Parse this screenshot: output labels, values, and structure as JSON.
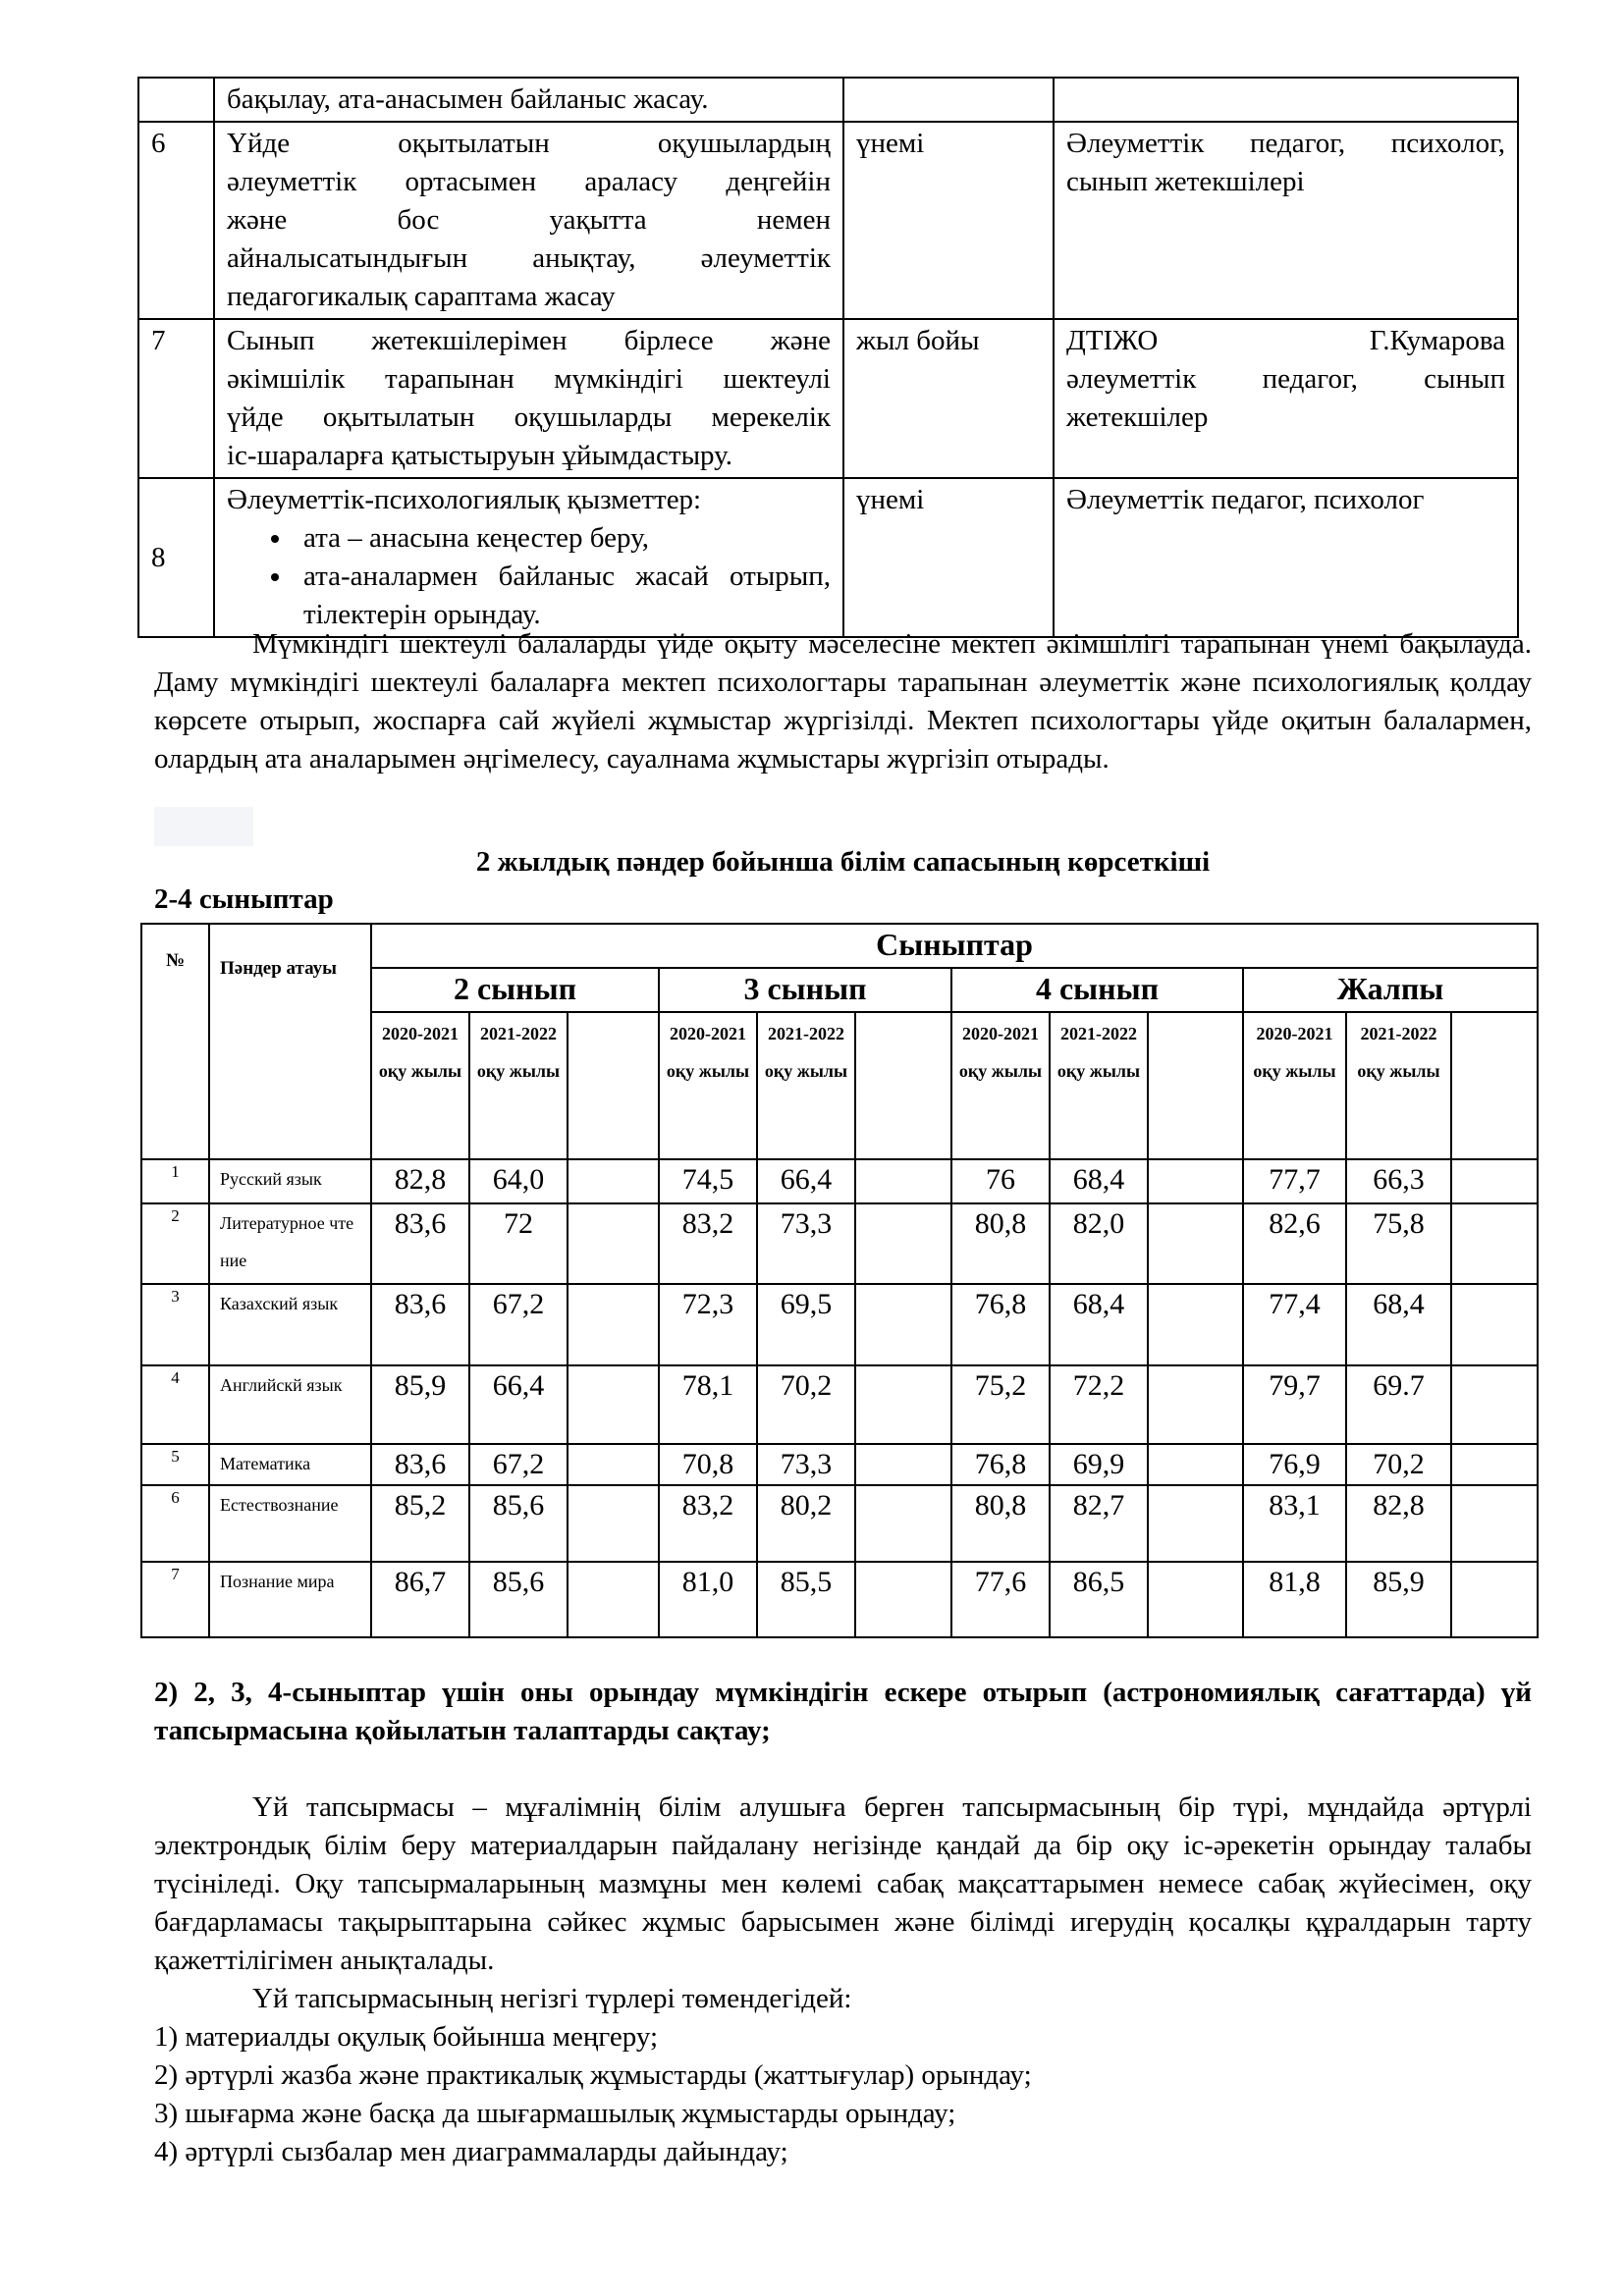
{
  "plan_table": {
    "rows": [
      {
        "num": "",
        "lines": [
          "бақылау, ата-анасымен байланыс жасау."
        ],
        "when": "",
        "who": []
      },
      {
        "num": "6",
        "lines": [
          "Үйде оқытылатын оқушылардың",
          "әлеуметтік ортасымен араласу деңгейін",
          "және бос уақытта немен",
          "айналысатындығын анықтау, әлеуметтік",
          "педагогикалық сараптама жасау"
        ],
        "when": "үнемі",
        "who": [
          "Әлеуметтік педагог, психолог,",
          "сынып жетекшілері"
        ]
      },
      {
        "num": "7",
        "lines": [
          "Сынып жетекшілерімен бірлесе және",
          "әкімшілік тарапынан мүмкіндігі шектеулі",
          "үйде оқытылатын оқушыларды мерекелік",
          "іс-шараларға қатыстыруын ұйымдастыру."
        ],
        "when": "жыл бойы",
        "who": [
          "ДТІЖО Г.Кумарова",
          "әлеуметтік педагог, сынып",
          "жетекшілер"
        ]
      },
      {
        "num": "8",
        "lines": [
          "Әлеуметтік-психологиялық қызметтер:"
        ],
        "bullets": [
          "ата – анасына кеңестер беру,",
          "ата-аналармен байланыс жасай отырып, тілектерін орындау."
        ],
        "when": "үнемі",
        "who": [
          "Әлеуметтік педагог, психолог"
        ]
      }
    ]
  },
  "paragraph1": "Мүмкіндігі шектеулі балаларды үйде оқыту мәселесіне мектеп әкімшілігі тарапынан үнемі бақылауда. Даму мүмкіндігі шектеулі балаларға мектеп психологтары тарапынан әлеуметтік және психологиялық қолдау көрсете отырып, жоспарға сай жүйелі жұмыстар жүргізілді. Мектеп психологтары үйде оқитын балалармен, олардың ата аналарымен әңгімелесу, сауалнама жұмыстары жүргізіп отырады.",
  "table_title": "2 жылдық пәндер бойынша білім сапасының көрсеткіші",
  "table_subtitle": "2-4 сыныптар",
  "quality_table": {
    "col_num": "№",
    "col_subject": "Пәндер атауы",
    "top_header": "Сыныптар",
    "groups": [
      "2 сынып",
      "3 сынып",
      "4 сынып",
      "Жалпы"
    ],
    "years": [
      "2020-2021 оқу жылы",
      "2021-2022 оқу жылы"
    ],
    "rows": [
      {
        "num": "1",
        "subject": "Русский язык",
        "values": [
          "82,8",
          "64,0",
          "74,5",
          "66,4",
          "76",
          "68,4",
          "77,7",
          "66,3"
        ]
      },
      {
        "num": "2",
        "subject": "Литературное чтение",
        "values": [
          "83,6",
          "72",
          "83,2",
          "73,3",
          "80,8",
          "82,0",
          "82,6",
          "75,8"
        ]
      },
      {
        "num": "3",
        "subject": "Казахский язык",
        "values": [
          "83,6",
          "67,2",
          "72,3",
          "69,5",
          "76,8",
          "68,4",
          "77,4",
          "68,4"
        ]
      },
      {
        "num": "4",
        "subject": "Английскй язык",
        "values": [
          "85,9",
          "66,4",
          "78,1",
          "70,2",
          "75,2",
          "72,2",
          "79,7",
          "69.7"
        ]
      },
      {
        "num": "5",
        "subject": "Математика",
        "values": [
          "83,6",
          "67,2",
          "70,8",
          "73,3",
          "76,8",
          "69,9",
          "76,9",
          "70,2"
        ]
      },
      {
        "num": "6",
        "subject": "Естествознание",
        "values": [
          "85,2",
          "85,6",
          "83,2",
          "80,2",
          "80,8",
          "82,7",
          "83,1",
          "82,8"
        ]
      },
      {
        "num": "7",
        "subject": "Познание мира",
        "values": [
          "86,7",
          "85,6",
          "81,0",
          "85,5",
          "77,6",
          "86,5",
          "81,8",
          "85,9"
        ]
      }
    ]
  },
  "heading2": "2) 2, 3, 4-сыныптар үшін оны орындау мүмкіндігін ескере отырып (астрономиялық сағаттарда) үй тапсырмасына қойылатын талаптарды сақтау;",
  "paragraph2": "Үй тапсырмасы – мұғалімнің білім алушыға берген тапсырмасының бір түрі, мұндайда әртүрлі электрондық білім беру материалдарын пайдалану негізінде қандай да бір оқу іс-әрекетін орындау талабы түсініледі. Оқу тапсырмаларының мазмұны мен көлемі сабақ мақсаттарымен немесе сабақ жүйесімен, оқу бағдарламасы тақырыптарына сәйкес жұмыс барысымен және білімді игерудің қосалқы құралдарын тарту қажеттілігімен анықталады.",
  "paragraph3": "Үй тапсырмасының негізгі түрлері төмендегідей:",
  "list": [
    "1) материалды оқулық бойынша меңгеру;",
    "2) әртүрлі жазба және практикалық жұмыстарды (жаттығулар) орындау;",
    "3) шығарма және басқа да шығармашылық жұмыстарды орындау;",
    "4) әртүрлі сызбалар мен диаграммаларды дайындау;"
  ]
}
